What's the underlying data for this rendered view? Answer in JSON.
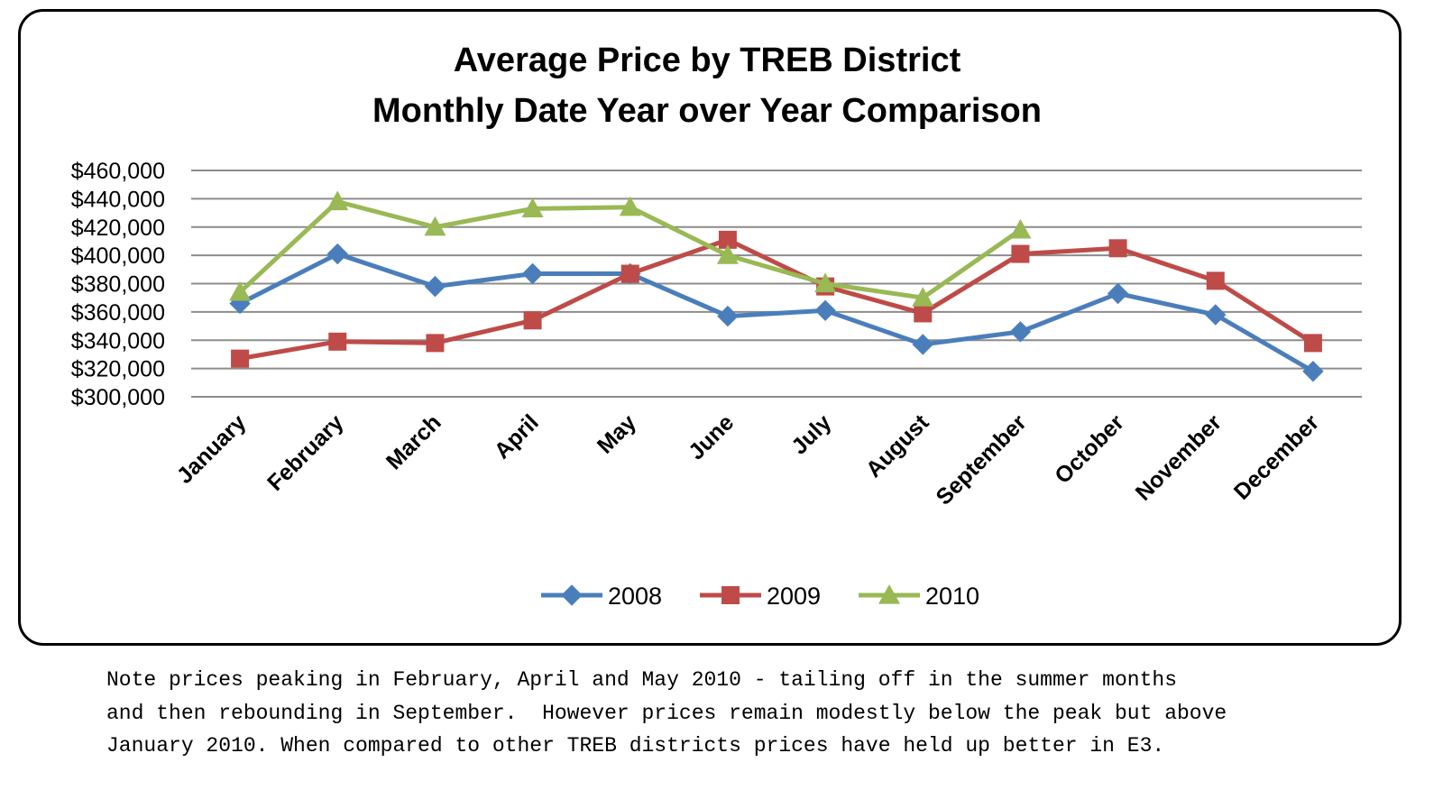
{
  "chart_data": {
    "type": "line",
    "title": [
      "Average Price by TREB District",
      "Monthly Date Year over Year Comparison"
    ],
    "categories": [
      "January",
      "February",
      "March",
      "April",
      "May",
      "June",
      "July",
      "August",
      "September",
      "October",
      "November",
      "December"
    ],
    "series": [
      {
        "name": "2008",
        "color": "#4a7ebb",
        "marker": "diamond",
        "values": [
          366000,
          401000,
          378000,
          387000,
          387000,
          357000,
          361000,
          337000,
          346000,
          373000,
          358000,
          318000
        ]
      },
      {
        "name": "2009",
        "color": "#be4b48",
        "marker": "square",
        "values": [
          327000,
          339000,
          338000,
          354000,
          387000,
          411000,
          378000,
          359000,
          401000,
          405000,
          382000,
          338000
        ]
      },
      {
        "name": "2010",
        "color": "#98b954",
        "marker": "triangle",
        "values": [
          374000,
          438000,
          420000,
          433000,
          434000,
          400000,
          380000,
          370000,
          418000,
          null,
          null,
          null
        ]
      }
    ],
    "ylim": [
      300000,
      460000
    ],
    "yticks": [
      300000,
      320000,
      340000,
      360000,
      380000,
      400000,
      420000,
      440000,
      460000
    ],
    "ytick_labels": [
      "$300,000",
      "$320,000",
      "$340,000",
      "$360,000",
      "$380,000",
      "$400,000",
      "$420,000",
      "$440,000",
      "$460,000"
    ],
    "grid": true,
    "legend_position": "bottom"
  },
  "note": {
    "lines": [
      "Note prices peaking in February, April and May 2010 - tailing off in the summer months",
      "and then rebounding in September.  However prices remain modestly below the peak but above",
      "January 2010. When compared to other TREB districts prices have held up better in E3."
    ]
  }
}
